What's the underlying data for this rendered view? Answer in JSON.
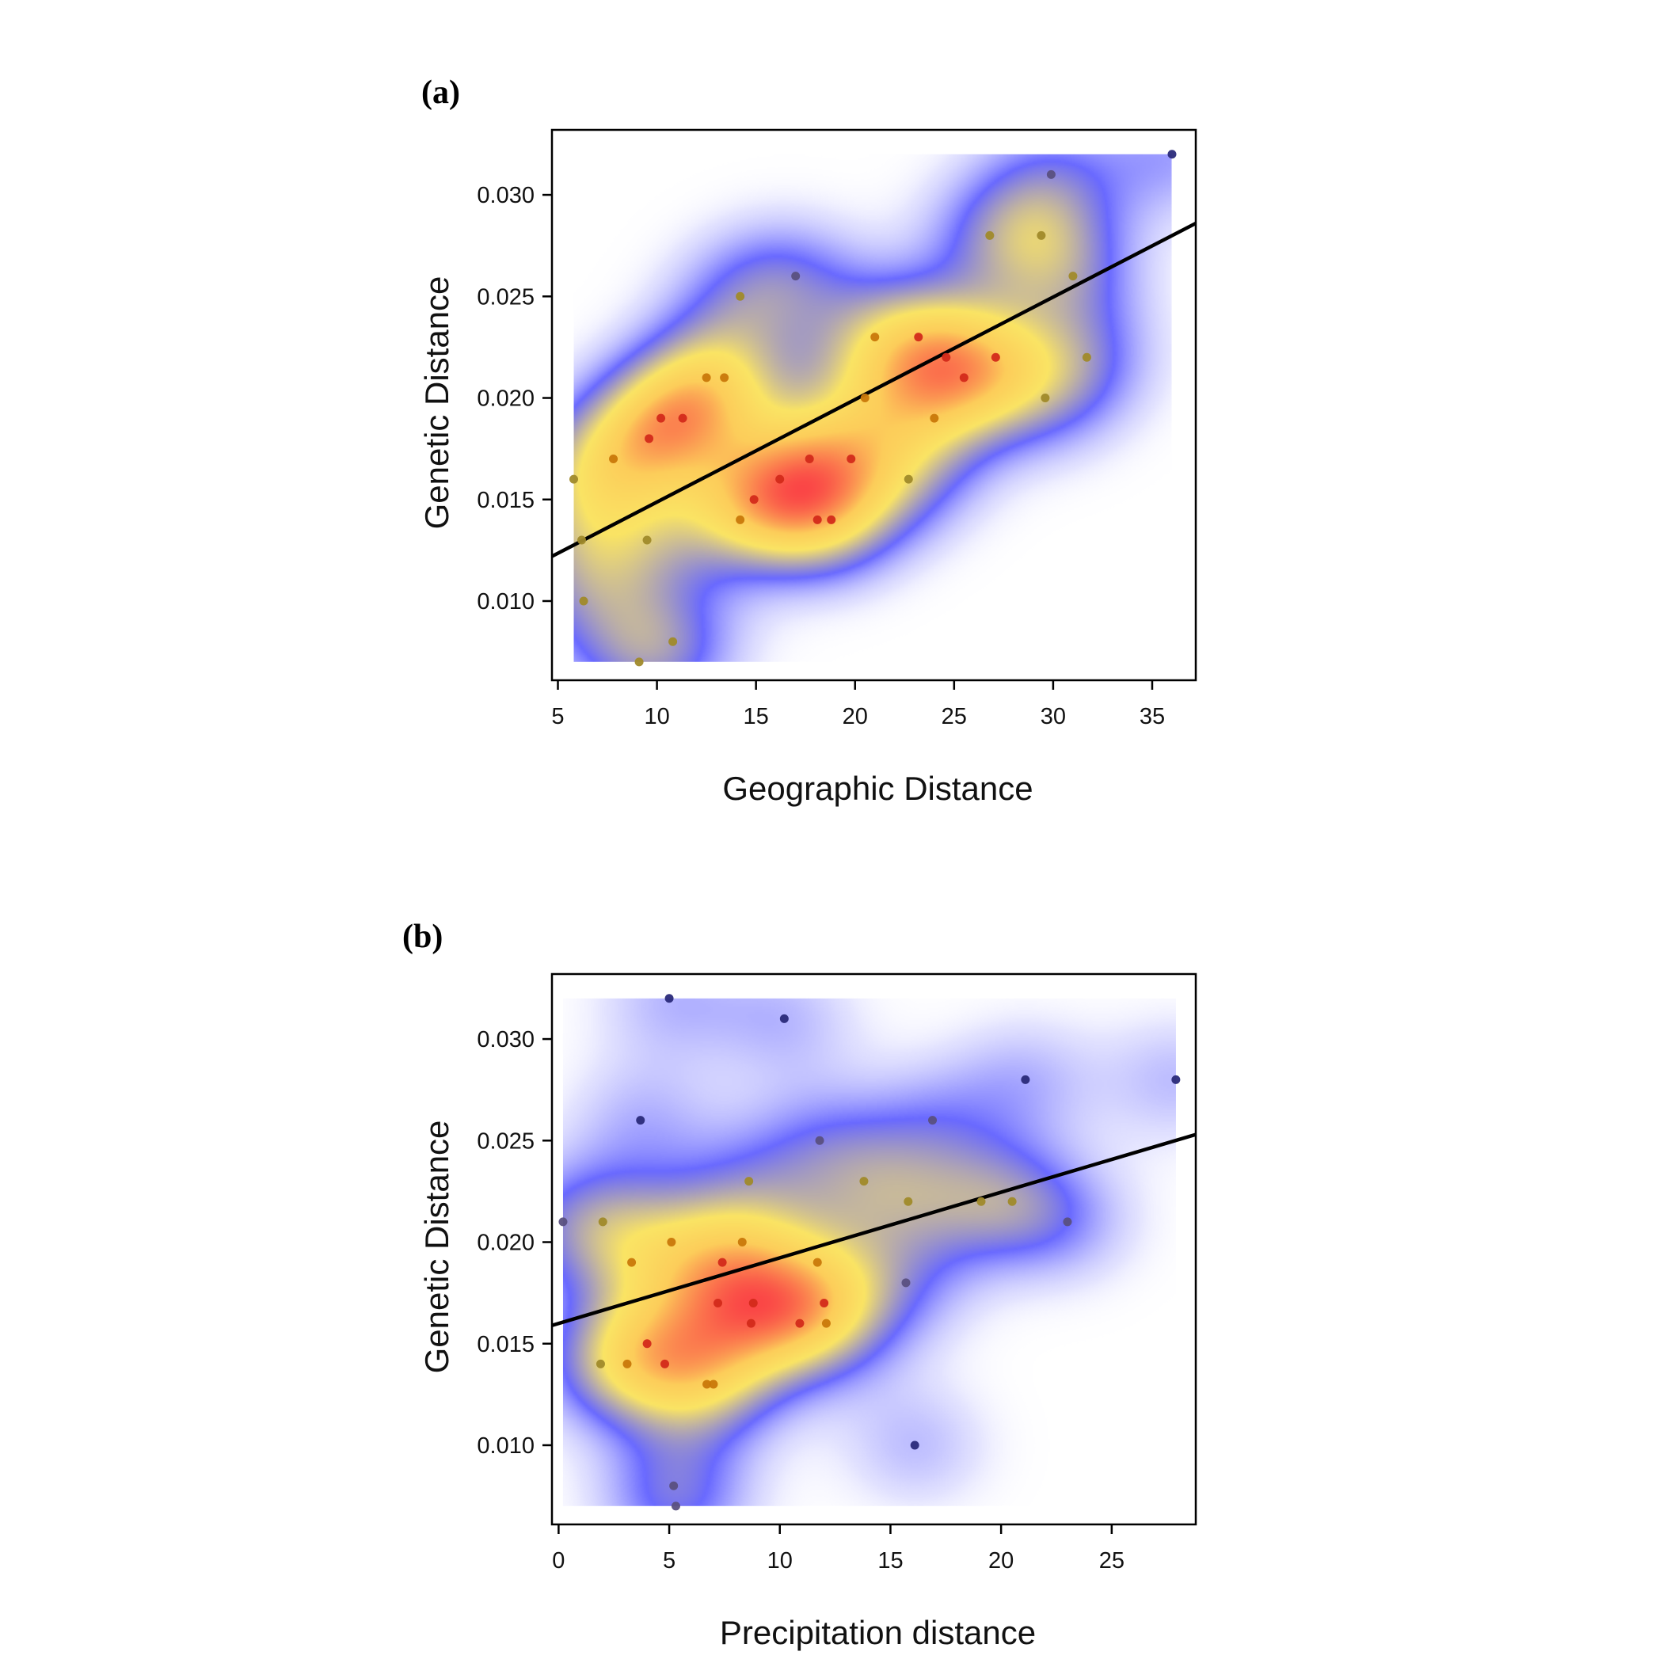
{
  "chart_data": [
    {
      "type": "scatter",
      "panel_label": "(a)",
      "xlabel": "Geographic Distance",
      "ylabel": "Genetic Distance",
      "xlim": [
        4.7,
        37.2
      ],
      "ylim": [
        0.0061,
        0.0332
      ],
      "xticks": [
        5,
        10,
        15,
        20,
        25,
        30,
        35
      ],
      "yticks": [
        0.01,
        0.015,
        0.02,
        0.025,
        0.03
      ],
      "ytick_labels": [
        "0.010",
        "0.015",
        "0.020",
        "0.025",
        "0.030"
      ],
      "density_extent": {
        "x": [
          5.8,
          36
        ],
        "y": [
          0.007,
          0.032
        ]
      },
      "regression_line": {
        "x": [
          4.7,
          37.2
        ],
        "y": [
          0.0122,
          0.0286
        ]
      },
      "points": [
        {
          "x": 36,
          "y": 0.032
        },
        {
          "x": 29.9,
          "y": 0.031
        },
        {
          "x": 26.8,
          "y": 0.028
        },
        {
          "x": 29.4,
          "y": 0.028
        },
        {
          "x": 17,
          "y": 0.026
        },
        {
          "x": 31,
          "y": 0.026
        },
        {
          "x": 14.2,
          "y": 0.025
        },
        {
          "x": 21,
          "y": 0.023
        },
        {
          "x": 23.2,
          "y": 0.023
        },
        {
          "x": 24.6,
          "y": 0.022
        },
        {
          "x": 27.1,
          "y": 0.022
        },
        {
          "x": 31.7,
          "y": 0.022
        },
        {
          "x": 12.5,
          "y": 0.021
        },
        {
          "x": 13.4,
          "y": 0.021
        },
        {
          "x": 25.5,
          "y": 0.021
        },
        {
          "x": 20.5,
          "y": 0.02
        },
        {
          "x": 29.6,
          "y": 0.02
        },
        {
          "x": 10.2,
          "y": 0.019
        },
        {
          "x": 11.3,
          "y": 0.019
        },
        {
          "x": 24,
          "y": 0.019
        },
        {
          "x": 9.6,
          "y": 0.018
        },
        {
          "x": 7.8,
          "y": 0.017
        },
        {
          "x": 17.7,
          "y": 0.017
        },
        {
          "x": 19.8,
          "y": 0.017
        },
        {
          "x": 5.8,
          "y": 0.016
        },
        {
          "x": 16.2,
          "y": 0.016
        },
        {
          "x": 22.7,
          "y": 0.016
        },
        {
          "x": 14.9,
          "y": 0.015
        },
        {
          "x": 14.2,
          "y": 0.014
        },
        {
          "x": 18.1,
          "y": 0.014
        },
        {
          "x": 18.8,
          "y": 0.014
        },
        {
          "x": 6.2,
          "y": 0.013
        },
        {
          "x": 9.5,
          "y": 0.013
        },
        {
          "x": 6.3,
          "y": 0.01
        },
        {
          "x": 10.8,
          "y": 0.008
        },
        {
          "x": 9.1,
          "y": 0.007
        }
      ]
    },
    {
      "type": "scatter",
      "panel_label": "(b)",
      "xlabel": "Precipitation distance",
      "ylabel": "Genetic Distance",
      "xlim": [
        -0.3,
        28.8
      ],
      "ylim": [
        0.0061,
        0.0332
      ],
      "xticks": [
        0,
        5,
        10,
        15,
        20,
        25
      ],
      "yticks": [
        0.01,
        0.015,
        0.02,
        0.025,
        0.03
      ],
      "ytick_labels": [
        "0.010",
        "0.015",
        "0.020",
        "0.025",
        "0.030"
      ],
      "density_extent": {
        "x": [
          0.2,
          27.9
        ],
        "y": [
          0.007,
          0.032
        ]
      },
      "regression_line": {
        "x": [
          -0.3,
          28.8
        ],
        "y": [
          0.0159,
          0.0253
        ]
      },
      "points": [
        {
          "x": 5,
          "y": 0.032
        },
        {
          "x": 10.2,
          "y": 0.031
        },
        {
          "x": 21.1,
          "y": 0.028
        },
        {
          "x": 27.9,
          "y": 0.028
        },
        {
          "x": 3.7,
          "y": 0.026
        },
        {
          "x": 16.9,
          "y": 0.026
        },
        {
          "x": 11.8,
          "y": 0.025
        },
        {
          "x": 8.6,
          "y": 0.023
        },
        {
          "x": 13.8,
          "y": 0.023
        },
        {
          "x": 15.8,
          "y": 0.022
        },
        {
          "x": 19.1,
          "y": 0.022
        },
        {
          "x": 20.5,
          "y": 0.022
        },
        {
          "x": 0.2,
          "y": 0.021
        },
        {
          "x": 2.0,
          "y": 0.021
        },
        {
          "x": 23,
          "y": 0.021
        },
        {
          "x": 5.1,
          "y": 0.02
        },
        {
          "x": 8.3,
          "y": 0.02
        },
        {
          "x": 3.3,
          "y": 0.019
        },
        {
          "x": 7.4,
          "y": 0.019
        },
        {
          "x": 11.7,
          "y": 0.019
        },
        {
          "x": 15.7,
          "y": 0.018
        },
        {
          "x": 7.2,
          "y": 0.017
        },
        {
          "x": 8.8,
          "y": 0.017
        },
        {
          "x": 12.0,
          "y": 0.017
        },
        {
          "x": 8.7,
          "y": 0.016
        },
        {
          "x": 10.9,
          "y": 0.016
        },
        {
          "x": 12.1,
          "y": 0.016
        },
        {
          "x": 4.0,
          "y": 0.015
        },
        {
          "x": 1.9,
          "y": 0.014
        },
        {
          "x": 3.1,
          "y": 0.014
        },
        {
          "x": 4.8,
          "y": 0.014
        },
        {
          "x": 6.7,
          "y": 0.013
        },
        {
          "x": 7.0,
          "y": 0.013
        },
        {
          "x": 16.1,
          "y": 0.01
        },
        {
          "x": 5.2,
          "y": 0.008
        },
        {
          "x": 5.3,
          "y": 0.007
        }
      ]
    }
  ]
}
